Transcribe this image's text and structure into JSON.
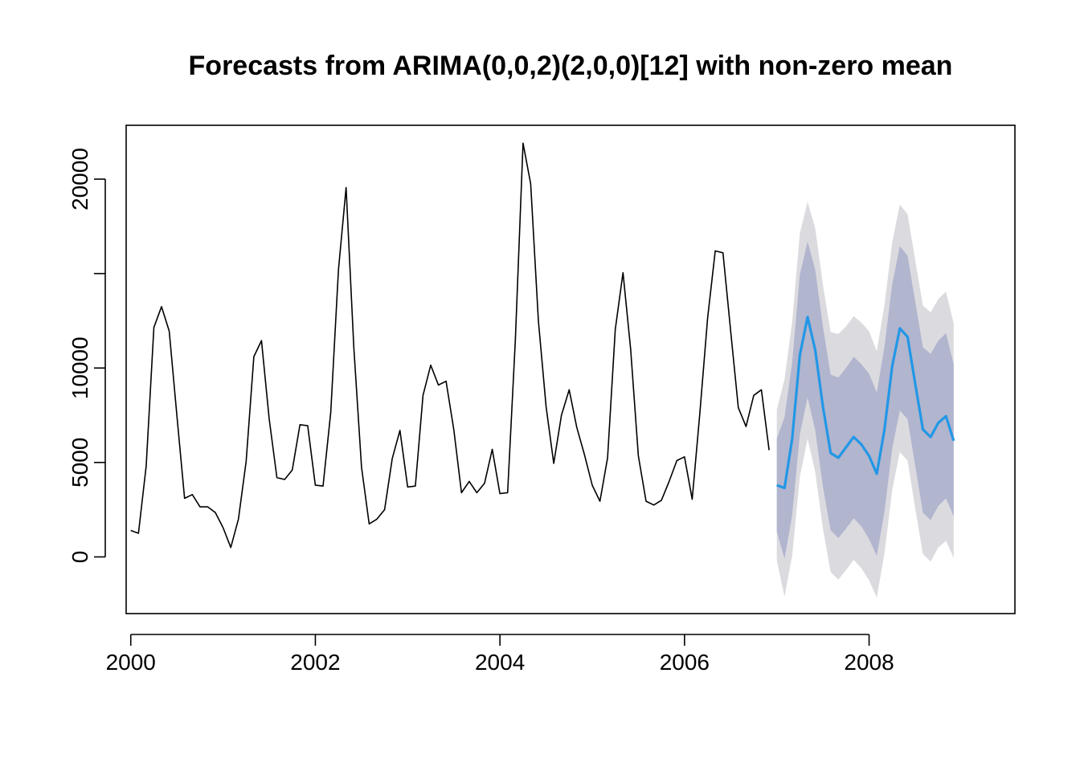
{
  "chart_data": {
    "type": "line",
    "title": "Forecasts from ARIMA(0,0,2)(2,0,0)[12] with non-zero mean",
    "xlabel": "",
    "ylabel": "",
    "xlim": [
      1999.95,
      2009.58
    ],
    "ylim": [
      -3000,
      22850
    ],
    "x_ticks": [
      2000,
      2002,
      2004,
      2006,
      2008
    ],
    "x_tick_labels": [
      "2000",
      "2002",
      "2004",
      "2006",
      "2008"
    ],
    "y_ticks": [
      0,
      5000,
      10000,
      15000,
      20000
    ],
    "y_tick_labels": [
      "0",
      "5000",
      "10000",
      "",
      "20000"
    ],
    "grid": false,
    "legend": "none",
    "series": [
      {
        "kind": "observed",
        "color": "#000000",
        "start": 2000.0,
        "frequency": 12,
        "values": [
          1400,
          1250,
          4800,
          12150,
          13250,
          11950,
          7450,
          3100,
          3300,
          2650,
          2650,
          2350,
          1550,
          500,
          2000,
          5050,
          10600,
          11450,
          7300,
          4200,
          4100,
          4600,
          7000,
          6950,
          3800,
          3750,
          7650,
          15200,
          19550,
          11100,
          4750,
          1750,
          2000,
          2500,
          5200,
          6700,
          3700,
          3750,
          8550,
          10150,
          9100,
          9300,
          6750,
          3400,
          4000,
          3400,
          3900,
          5700,
          3350,
          3400,
          11450,
          21900,
          19750,
          12500,
          7950,
          4950,
          7500,
          8850,
          6850,
          5400,
          3800,
          2950,
          5250,
          12050,
          15050,
          11000,
          5350,
          2950,
          2750,
          3000,
          4000,
          5100,
          5300,
          3050,
          7650,
          12650,
          16200,
          16100,
          11950,
          7900,
          6900,
          8550,
          8850,
          5650
        ]
      },
      {
        "kind": "forecast",
        "color": "#2297e6",
        "start": 2007.0,
        "frequency": 12,
        "values": [
          3800,
          3650,
          6250,
          10700,
          12700,
          10950,
          7950,
          5500,
          5250,
          5800,
          6350,
          5950,
          5350,
          4400,
          6750,
          10100,
          12100,
          11650,
          9150,
          6750,
          6350,
          7100,
          7450,
          6150
        ]
      }
    ],
    "bands": [
      {
        "name": "95%",
        "color": "#dbdbdf",
        "lower": [
          -200,
          -2100,
          50,
          4250,
          6250,
          4500,
          1500,
          -800,
          -1200,
          -700,
          -150,
          -600,
          -1250,
          -2150,
          200,
          3550,
          5550,
          5100,
          2550,
          150,
          -250,
          500,
          850,
          -50
        ],
        "upper": [
          7800,
          9400,
          12450,
          17150,
          18800,
          17400,
          14400,
          11900,
          11800,
          12200,
          12750,
          12400,
          11950,
          10900,
          13350,
          16650,
          18650,
          18150,
          15700,
          13300,
          12950,
          13650,
          14050,
          12350
        ]
      },
      {
        "name": "80%",
        "color": "#b1b5ce",
        "lower": [
          1350,
          -100,
          2200,
          6500,
          8450,
          6700,
          3700,
          1400,
          1000,
          1500,
          2050,
          1600,
          950,
          50,
          2400,
          5750,
          7750,
          7300,
          4800,
          2350,
          1950,
          2700,
          3100,
          2150
        ],
        "upper": [
          6250,
          7400,
          10300,
          14950,
          16700,
          15200,
          12200,
          9650,
          9500,
          10000,
          10600,
          10200,
          9700,
          8700,
          11150,
          14450,
          16450,
          15950,
          13500,
          11100,
          10750,
          11450,
          11850,
          10200
        ]
      }
    ]
  }
}
